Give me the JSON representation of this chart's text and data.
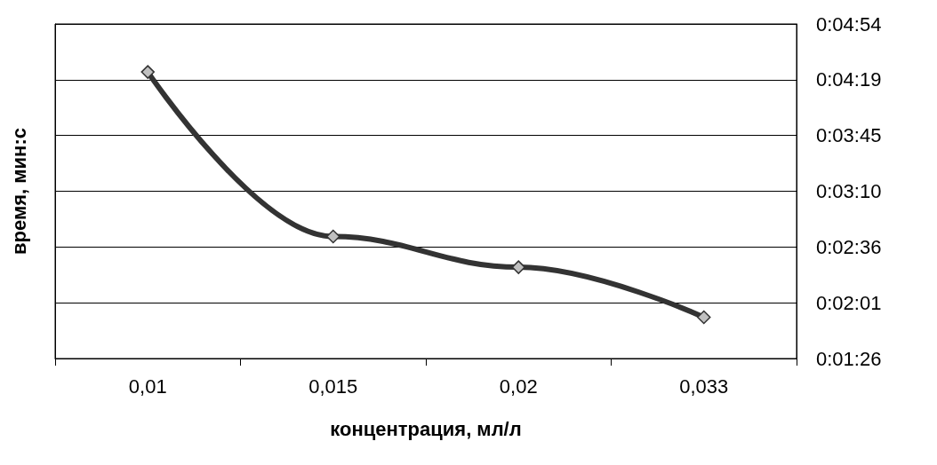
{
  "chart_data": {
    "type": "line",
    "xlabel": "концентрация, мл/л",
    "ylabel": "время, мин:с",
    "categories": [
      "0,01",
      "0,015",
      "0,02",
      "0,033"
    ],
    "series": [
      {
        "color": "#333333",
        "values": [
          264,
          162,
          143,
          112
        ]
      }
    ],
    "ylim": [
      86.4,
      293.76
    ],
    "yticks": [
      {
        "value": 86.4,
        "label": "0:01:26"
      },
      {
        "value": 120.96,
        "label": "0:02:01"
      },
      {
        "value": 155.52,
        "label": "0:02:36"
      },
      {
        "value": 190.08,
        "label": "0:03:10"
      },
      {
        "value": 224.64,
        "label": "0:03:45"
      },
      {
        "value": 259.2,
        "label": "0:04:19"
      },
      {
        "value": 293.76,
        "label": "0:04:54"
      }
    ],
    "grid": "y",
    "marker": "diamond",
    "line_style": "solid"
  }
}
